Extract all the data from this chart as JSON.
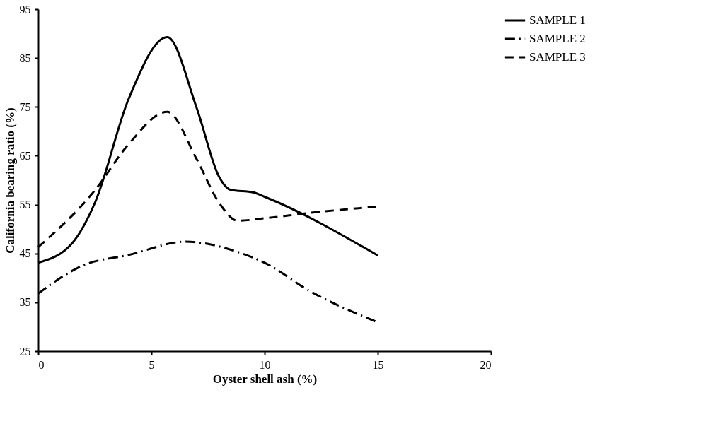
{
  "chart_data": {
    "type": "line",
    "xlabel": "Oyster shell ash (%)",
    "ylabel": "California  bearing ratio (%)",
    "xlim": [
      0,
      20
    ],
    "xticks": [
      0,
      5,
      10,
      15,
      20
    ],
    "ylim": [
      25,
      95
    ],
    "yticks": [
      25,
      35,
      45,
      55,
      65,
      75,
      85,
      95
    ],
    "grid": false,
    "legend": "right",
    "marker": "none",
    "series": [
      {
        "name": "SAMPLE 1",
        "color": "#000000",
        "line_style": "solid",
        "x": [
          0,
          1.5,
          2.5,
          4,
          5.7,
          7,
          8,
          8.5,
          9.5,
          10,
          15
        ],
        "values": [
          43.1,
          47.1,
          55.3,
          76.7,
          89.3,
          74.8,
          60.6,
          58.0,
          57.5,
          56.6,
          44.6
        ]
      },
      {
        "name": "SAMPLE 2",
        "color": "#000000",
        "line_style": "dashdot",
        "x": [
          0,
          2,
          4,
          6.5,
          9,
          10,
          12,
          15
        ],
        "values": [
          36.8,
          42.6,
          44.7,
          47.4,
          45.0,
          43.1,
          37.3,
          30.9
        ]
      },
      {
        "name": "SAMPLE 3",
        "color": "#000000",
        "line_style": "dashed",
        "x": [
          0,
          2.5,
          4,
          5.7,
          7,
          8,
          8.8,
          10,
          12,
          15
        ],
        "values": [
          46.3,
          57.9,
          67.4,
          74.0,
          64.3,
          55.3,
          51.7,
          52.2,
          53.3,
          54.6
        ]
      }
    ]
  }
}
